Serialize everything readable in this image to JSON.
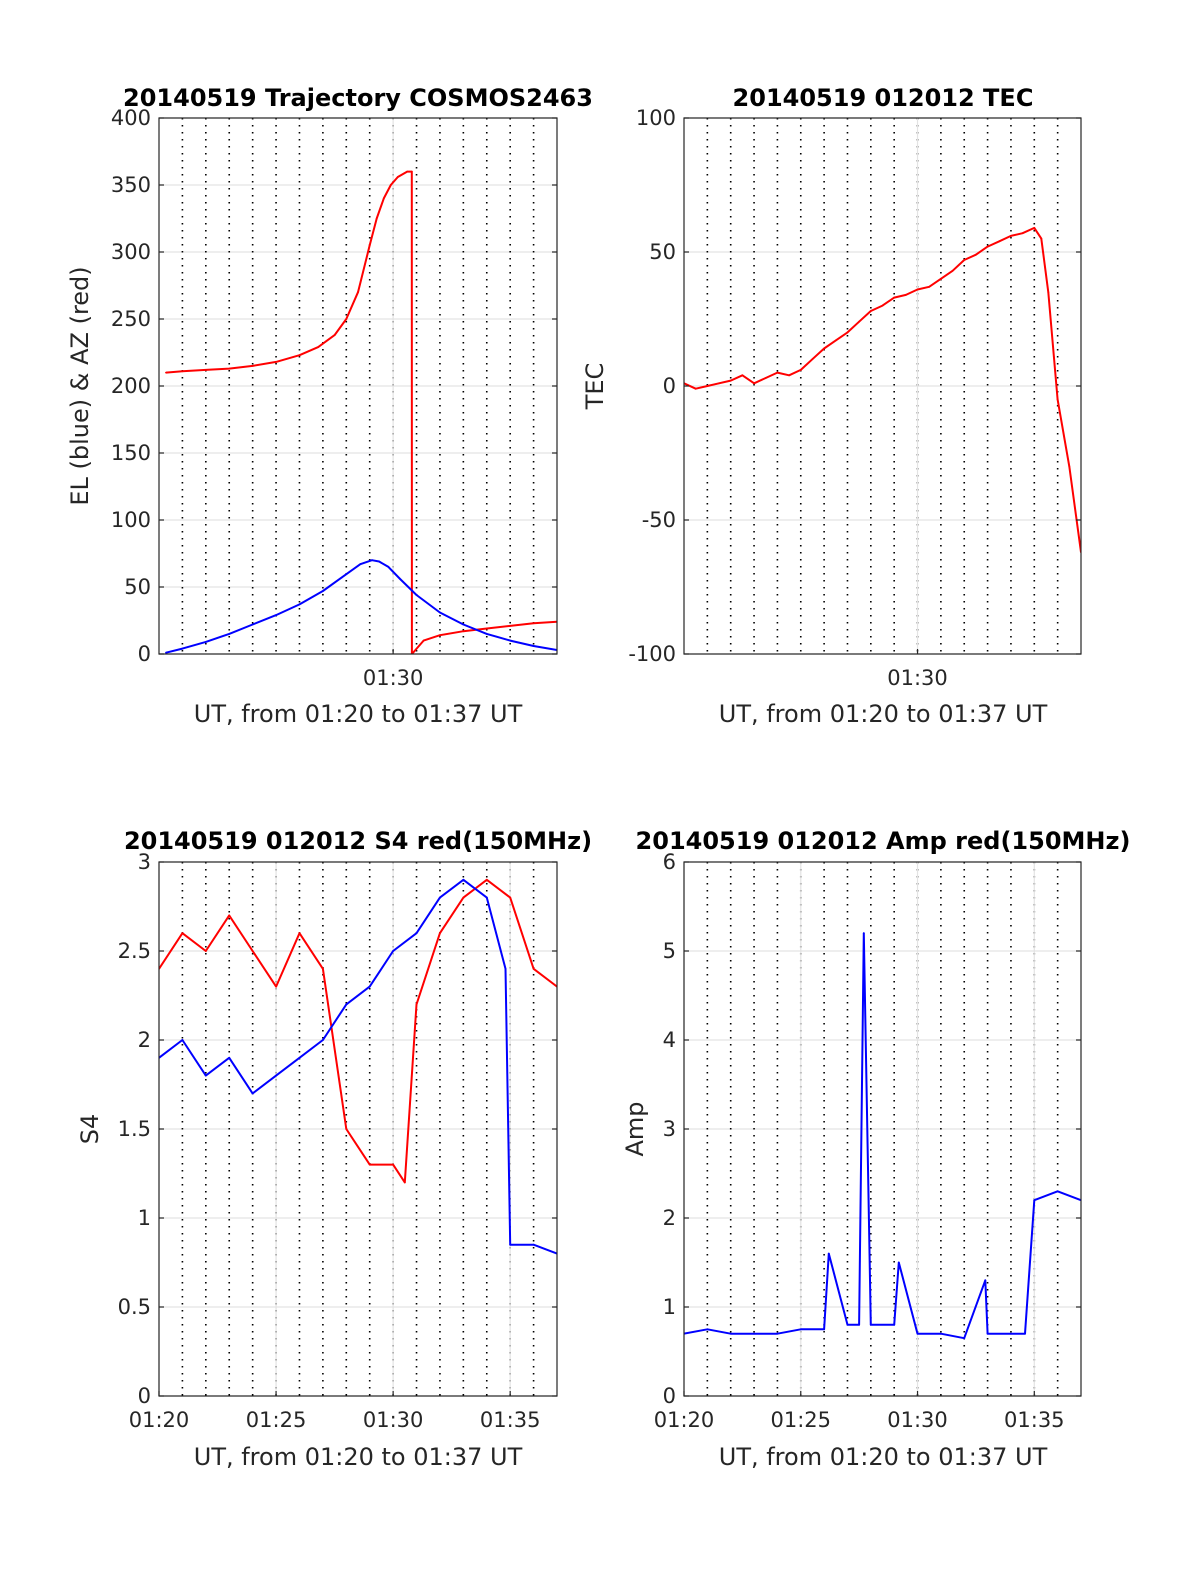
{
  "figure": {
    "background": "#ffffff"
  },
  "chart_data": [
    {
      "id": "trajectory",
      "type": "line",
      "title": "20140519 Trajectory COSMOS2463",
      "xlabel": "UT, from 01:20 to 01:37 UT",
      "ylabel": "EL (blue) & AZ (red)",
      "xlim": [
        0,
        17
      ],
      "ylim": [
        0,
        400
      ],
      "yticks": [
        0,
        50,
        100,
        150,
        200,
        250,
        300,
        350,
        400
      ],
      "xtick_labels": [
        {
          "x": 10,
          "label": "01:30"
        }
      ],
      "grid": true,
      "minor_x_dotted": true,
      "series": [
        {
          "color": "#ff0000",
          "x": [
            0.3,
            1,
            2,
            3,
            4,
            5,
            6,
            6.8,
            7.5,
            8,
            8.5,
            9,
            9.3,
            9.6,
            9.9,
            10.2,
            10.6,
            10.8,
            10.801,
            11.3,
            12,
            13,
            14,
            15,
            16,
            17
          ],
          "y": [
            210,
            211,
            212,
            213,
            215,
            218,
            223,
            229,
            238,
            250,
            270,
            305,
            325,
            340,
            350,
            356,
            360,
            360,
            0,
            10,
            14,
            17,
            19,
            21,
            23,
            24
          ]
        },
        {
          "color": "#0000ff",
          "x": [
            0.3,
            1,
            2,
            3,
            4,
            5,
            6,
            7,
            7.8,
            8.6,
            9.1,
            9.4,
            9.8,
            10.3,
            11,
            12,
            13,
            14,
            15,
            16,
            17
          ],
          "y": [
            1,
            4,
            9,
            15,
            22,
            29,
            37,
            47,
            57,
            67,
            70,
            69,
            65,
            56,
            44,
            31,
            22,
            15,
            10,
            6,
            3
          ]
        }
      ]
    },
    {
      "id": "tec",
      "type": "line",
      "title": "20140519 012012 TEC",
      "xlabel": "UT, from 01:20 to 01:37 UT",
      "ylabel": "TEC",
      "xlim": [
        0,
        17
      ],
      "ylim": [
        -100,
        100
      ],
      "yticks": [
        -100,
        -50,
        0,
        50,
        100
      ],
      "xtick_labels": [
        {
          "x": 10,
          "label": "01:30"
        }
      ],
      "grid": true,
      "minor_x_dotted": true,
      "series": [
        {
          "color": "#ff0000",
          "x": [
            0,
            0.5,
            1,
            1.5,
            2,
            2.5,
            3,
            3.5,
            4,
            4.5,
            5,
            5.5,
            6,
            6.5,
            7,
            7.5,
            8,
            8.5,
            9,
            9.5,
            10,
            10.5,
            11,
            11.5,
            12,
            12.5,
            13,
            13.5,
            14,
            14.5,
            15,
            15.3,
            15.6,
            16,
            16.5,
            17
          ],
          "y": [
            1,
            -1,
            0,
            1,
            2,
            4,
            1,
            3,
            5,
            4,
            6,
            10,
            14,
            17,
            20,
            24,
            28,
            30,
            33,
            34,
            36,
            37,
            40,
            43,
            47,
            49,
            52,
            54,
            56,
            57,
            59,
            55,
            35,
            -5,
            -30,
            -62
          ]
        }
      ]
    },
    {
      "id": "s4",
      "type": "line",
      "title": "20140519 012012 S4 red(150MHz)",
      "xlabel": "UT, from 01:20 to 01:37 UT",
      "ylabel": "S4",
      "xlim": [
        0,
        17
      ],
      "ylim": [
        0,
        3
      ],
      "yticks": [
        0,
        0.5,
        1,
        1.5,
        2,
        2.5,
        3
      ],
      "xtick_labels": [
        {
          "x": 0,
          "label": "01:20"
        },
        {
          "x": 5,
          "label": "01:25"
        },
        {
          "x": 10,
          "label": "01:30"
        },
        {
          "x": 15,
          "label": "01:35"
        }
      ],
      "grid": true,
      "minor_x_dotted": true,
      "series": [
        {
          "color": "#ff0000",
          "x": [
            0,
            1,
            2,
            3,
            4,
            5,
            6,
            7,
            8,
            9,
            10,
            10.5,
            11,
            12,
            13,
            14,
            15,
            16,
            17
          ],
          "y": [
            2.4,
            2.6,
            2.5,
            2.7,
            2.5,
            2.3,
            2.6,
            2.4,
            1.5,
            1.3,
            1.3,
            1.2,
            2.2,
            2.6,
            2.8,
            2.9,
            2.8,
            2.4,
            2.3
          ]
        },
        {
          "color": "#0000ff",
          "x": [
            0,
            1,
            2,
            3,
            4,
            5,
            6,
            7,
            8,
            9,
            10,
            11,
            12,
            13,
            14,
            14.8,
            15,
            16,
            17
          ],
          "y": [
            1.9,
            2.0,
            1.8,
            1.9,
            1.7,
            1.8,
            1.9,
            2.0,
            2.2,
            2.3,
            2.5,
            2.6,
            2.8,
            2.9,
            2.8,
            2.4,
            0.85,
            0.85,
            0.8
          ]
        }
      ]
    },
    {
      "id": "amp",
      "type": "line",
      "title": "20140519 012012 Amp red(150MHz)",
      "xlabel": "UT, from 01:20 to 01:37 UT",
      "ylabel": "Amp",
      "xlim": [
        0,
        17
      ],
      "ylim": [
        0,
        6
      ],
      "yticks": [
        0,
        1,
        2,
        3,
        4,
        5,
        6
      ],
      "xtick_labels": [
        {
          "x": 0,
          "label": "01:20"
        },
        {
          "x": 5,
          "label": "01:25"
        },
        {
          "x": 10,
          "label": "01:30"
        },
        {
          "x": 15,
          "label": "01:35"
        }
      ],
      "grid": true,
      "minor_x_dotted": true,
      "series": [
        {
          "color": "#0000ff",
          "x": [
            0,
            1,
            2,
            3,
            4,
            5,
            6,
            6.2,
            7,
            7.5,
            7.7,
            8,
            9,
            9.2,
            10,
            11,
            12,
            12.9,
            13,
            14,
            14.6,
            15,
            16,
            17
          ],
          "y": [
            0.7,
            0.75,
            0.7,
            0.7,
            0.7,
            0.75,
            0.75,
            1.6,
            0.8,
            0.8,
            5.2,
            0.8,
            0.8,
            1.5,
            0.7,
            0.7,
            0.65,
            1.3,
            0.7,
            0.7,
            0.7,
            2.2,
            2.3,
            2.2
          ]
        }
      ]
    }
  ]
}
